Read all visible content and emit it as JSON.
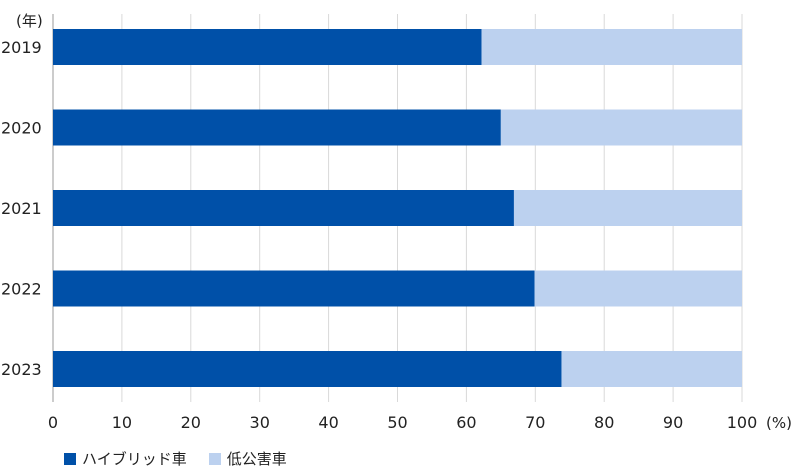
{
  "chart_data": {
    "type": "bar",
    "orientation": "horizontal",
    "stacked": true,
    "categories": [
      "2019",
      "2020",
      "2021",
      "2022",
      "2023"
    ],
    "category_unit": "(年)",
    "x_unit": "(%)",
    "xlim": [
      0,
      100
    ],
    "xticks": [
      0,
      10,
      20,
      30,
      40,
      50,
      60,
      70,
      80,
      90,
      100
    ],
    "grid": true,
    "legend_position": "bottom-left",
    "series": [
      {
        "name": "ハイブリッド車",
        "color": "#0050a8",
        "values": [
          62.2,
          65.0,
          66.9,
          69.9,
          73.8
        ]
      },
      {
        "name": "低公害車",
        "color": "#bcd1ef",
        "values": [
          37.8,
          35.0,
          33.1,
          30.1,
          26.2
        ]
      }
    ]
  }
}
